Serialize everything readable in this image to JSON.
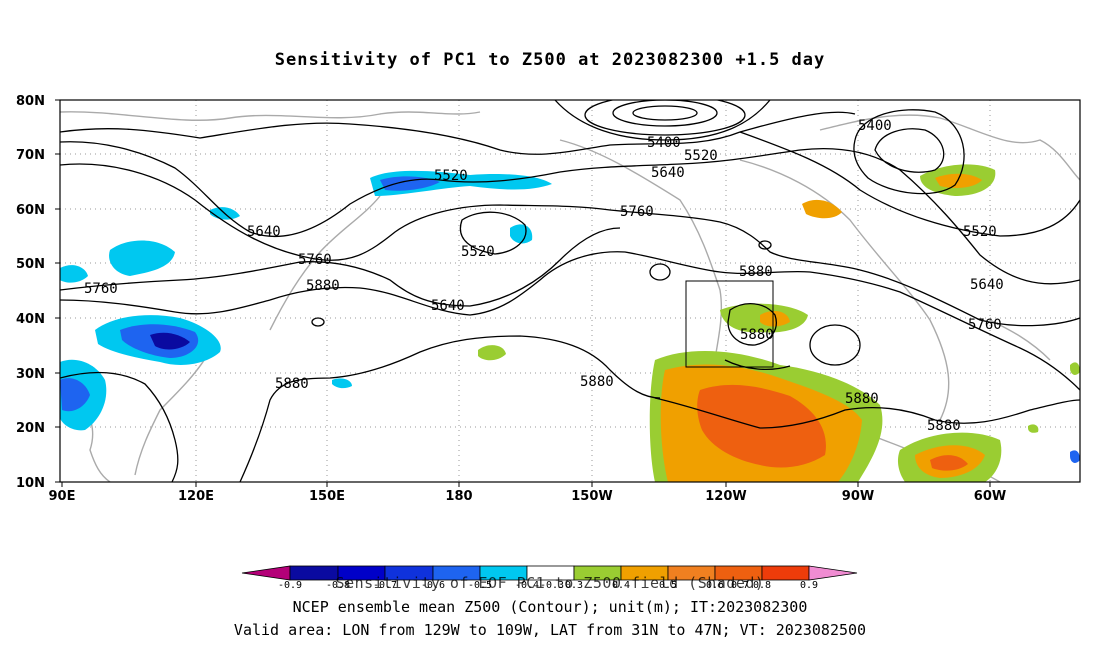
{
  "title": "Sensitivity of PC1 to Z500 at 2023082300 +1.5 day",
  "map": {
    "lat_labels": [
      "80N",
      "70N",
      "60N",
      "50N",
      "40N",
      "30N",
      "20N",
      "10N"
    ],
    "lon_labels": [
      "90E",
      "120E",
      "150E",
      "180",
      "150W",
      "120W",
      "90W",
      "60W"
    ],
    "contour_labels": [
      "5400",
      "5520",
      "5640",
      "5760",
      "5880",
      "5400",
      "5520",
      "5640",
      "5760",
      "5880",
      "5520",
      "5640",
      "5760",
      "5880",
      "5520",
      "5640",
      "5760",
      "5880",
      "5880",
      "5880",
      "5880"
    ],
    "colors": {
      "contour": "#000000",
      "coast": "#aaaaaa",
      "positive_low": "#9acd32",
      "positive_mid": "#f0a000",
      "positive_high": "#ee6010",
      "negative_low": "#00c8f0",
      "negative_mid": "#1e64f0",
      "negative_high": "#0a0aa0"
    },
    "valid_area": {
      "lon": [
        "129W",
        "109W"
      ],
      "lat": [
        "31N",
        "47N"
      ]
    }
  },
  "colorbar": {
    "ticks": [
      "-0.9",
      "-0.8",
      "-0.7",
      "-0.6",
      "-0.5",
      "-0.4",
      "-0.3",
      "0.3",
      "0.4",
      "0.5",
      "0.6",
      "0.7",
      "0.8",
      "0.9"
    ],
    "colors": [
      "#b40078",
      "#0a0aa0",
      "#0000c8",
      "#0f32dc",
      "#1e64f0",
      "#0096e6",
      "#00c8f0",
      "#ffffff",
      "#9acd32",
      "#f0a000",
      "#f08020",
      "#ee6010",
      "#ee3c0a",
      "#e60000",
      "#f08cd2"
    ]
  },
  "captions": {
    "line1": "Sensitivity of EOF PC1 to Z500 field (Shaded)",
    "line2": "NCEP ensemble mean Z500 (Contour); unit(m); IT:2023082300",
    "line3": "Valid area: LON from 129W to 109W, LAT from 31N to 47N; VT: 2023082500"
  }
}
